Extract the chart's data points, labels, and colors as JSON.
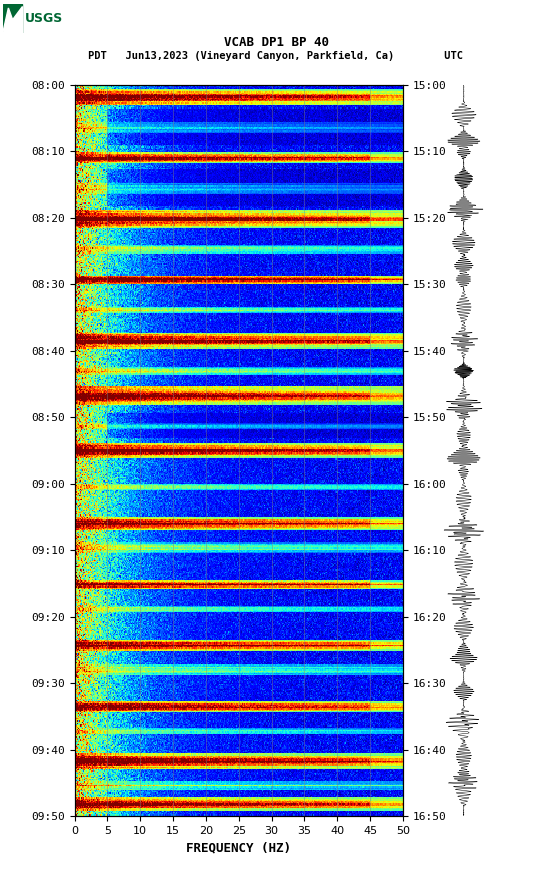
{
  "title_line1": "VCAB DP1 BP 40",
  "title_line2": "PDT   Jun13,2023 (Vineyard Canyon, Parkfield, Ca)        UTC",
  "xlabel": "FREQUENCY (HZ)",
  "left_yticks": [
    "08:00",
    "08:10",
    "08:20",
    "08:30",
    "08:40",
    "08:50",
    "09:00",
    "09:10",
    "09:20",
    "09:30",
    "09:40",
    "09:50"
  ],
  "right_yticks": [
    "15:00",
    "15:10",
    "15:20",
    "15:30",
    "15:40",
    "15:50",
    "16:00",
    "16:10",
    "16:20",
    "16:30",
    "16:40",
    "16:50"
  ],
  "xticks": [
    0,
    5,
    10,
    15,
    20,
    25,
    30,
    35,
    40,
    45,
    50
  ],
  "xmin": 0,
  "xmax": 50,
  "n_time_steps": 600,
  "n_freq_steps": 500,
  "bg_color": "white",
  "spectrogram_cmap": "jet",
  "vertical_lines_freq": [
    5,
    10,
    15,
    20,
    25,
    30,
    35,
    40,
    45
  ],
  "seed": 42,
  "logo_color": "#006633"
}
